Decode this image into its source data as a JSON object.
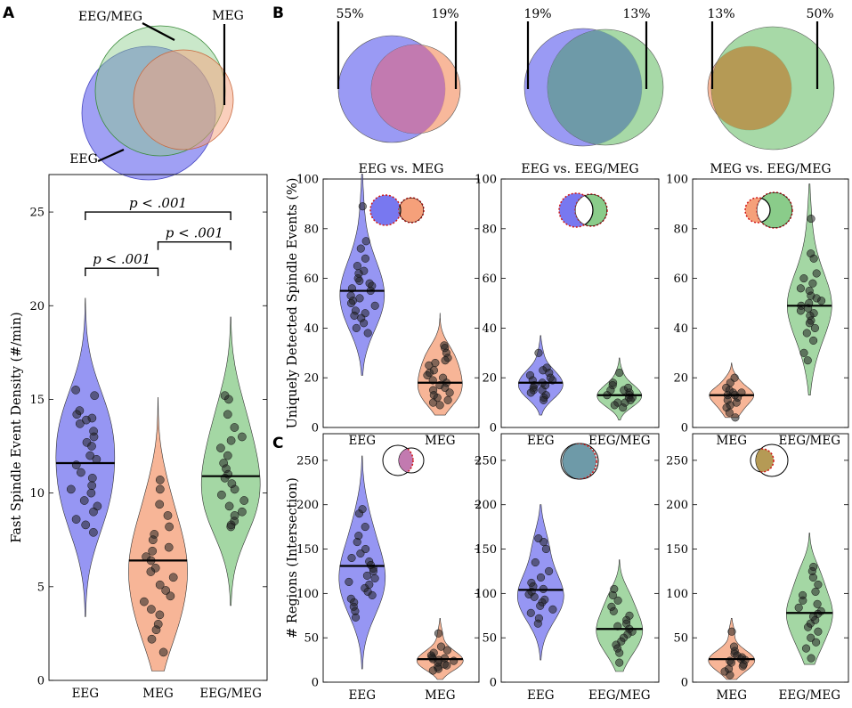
{
  "panel_letters": {
    "a": "A",
    "b": "B",
    "c": "C"
  },
  "colors": {
    "eeg": "#7878f0",
    "meg": "#f5a07a",
    "eegmeg": "#8acc8a",
    "eeg_meg_overlap": "#c27ab0",
    "eeg_eegmeg_overlap": "#6e9aa8",
    "meg_eegmeg_overlap": "#b59a55",
    "dot": "#222222",
    "dotted_outline": "#d01818"
  },
  "chart_data": [
    {
      "id": "A-venn",
      "type": "venn",
      "sets": [
        "EEG",
        "EEG/MEG",
        "MEG"
      ],
      "labels": {
        "eeg": "EEG",
        "eegmeg": "EEG/MEG",
        "meg": "MEG"
      }
    },
    {
      "id": "A-violin",
      "type": "violin",
      "ylabel": "Fast Spindle Event Density (#/min)",
      "ylim": [
        0,
        27
      ],
      "yticks": [
        0,
        5,
        10,
        15,
        20,
        25
      ],
      "categories": [
        "EEG",
        "MEG",
        "EEG/MEG"
      ],
      "series": [
        {
          "name": "EEG",
          "median": 11.6,
          "range": [
            3.4,
            20.4
          ],
          "points": [
            15.5,
            15.2,
            14.4,
            14.2,
            14.0,
            13.9,
            13.7,
            13.3,
            13.0,
            12.7,
            12.5,
            12.0,
            11.8,
            11.5,
            11.1,
            10.8,
            10.4,
            10.2,
            10.0,
            9.6,
            9.3,
            9.0,
            8.6,
            8.3,
            7.9
          ]
        },
        {
          "name": "MEG",
          "median": 6.4,
          "range": [
            0.5,
            15.1
          ],
          "points": [
            10.7,
            10.2,
            9.4,
            8.8,
            8.2,
            7.8,
            7.5,
            7.1,
            6.9,
            6.6,
            6.4,
            6.0,
            5.8,
            5.5,
            5.1,
            4.8,
            4.5,
            4.2,
            3.8,
            3.5,
            3.0,
            2.7,
            2.2,
            1.5
          ]
        },
        {
          "name": "EEG/MEG",
          "median": 10.9,
          "range": [
            4.0,
            19.4
          ],
          "points": [
            15.2,
            15.0,
            14.2,
            13.5,
            13.0,
            12.8,
            12.4,
            12.0,
            11.6,
            11.3,
            11.0,
            10.8,
            10.5,
            10.2,
            9.9,
            9.6,
            9.3,
            9.0,
            8.8,
            8.5,
            8.3,
            8.2
          ]
        }
      ],
      "significance": [
        {
          "pair": [
            "EEG",
            "MEG"
          ],
          "label": "p < .001"
        },
        {
          "pair": [
            "MEG",
            "EEG/MEG"
          ],
          "label": "p < .001"
        },
        {
          "pair": [
            "EEG",
            "EEG/MEG"
          ],
          "label": "p < .001"
        }
      ]
    },
    {
      "id": "B1-venn",
      "type": "venn",
      "sets": [
        "EEG",
        "MEG"
      ],
      "unique_labels": [
        "55%",
        "19%"
      ]
    },
    {
      "id": "B2-venn",
      "type": "venn",
      "sets": [
        "EEG",
        "EEG/MEG"
      ],
      "unique_labels": [
        "19%",
        "13%"
      ]
    },
    {
      "id": "B3-venn",
      "type": "venn",
      "sets": [
        "MEG",
        "EEG/MEG"
      ],
      "unique_labels": [
        "13%",
        "50%"
      ]
    },
    {
      "id": "B1-violin",
      "type": "violin",
      "title": "EEG vs. MEG",
      "ylabel": "Uniquely Detected Spindle Events (%)",
      "ylim": [
        0,
        100
      ],
      "yticks": [
        0,
        20,
        40,
        60,
        80,
        100
      ],
      "categories": [
        "EEG",
        "MEG"
      ],
      "series": [
        {
          "name": "EEG",
          "median": 55,
          "range": [
            21,
            102
          ],
          "points": [
            89,
            75,
            72,
            68,
            65,
            63,
            62,
            60,
            59,
            58,
            57,
            56,
            55,
            53,
            52,
            51,
            50,
            49,
            47,
            46,
            45,
            44,
            42,
            40,
            38
          ]
        },
        {
          "name": "MEG",
          "median": 18,
          "range": [
            5,
            46
          ],
          "points": [
            33,
            32,
            30,
            28,
            27,
            26,
            25,
            23,
            22,
            21,
            20,
            19,
            18,
            17,
            16,
            15,
            14,
            13,
            12,
            11,
            10,
            9
          ]
        }
      ]
    },
    {
      "id": "B2-violin",
      "type": "violin",
      "title": "EEG vs. EEG/MEG",
      "ylim": [
        0,
        100
      ],
      "yticks": [
        0,
        20,
        40,
        60,
        80,
        100
      ],
      "categories": [
        "EEG",
        "EEG/MEG"
      ],
      "series": [
        {
          "name": "EEG",
          "median": 18,
          "range": [
            5,
            37
          ],
          "points": [
            30,
            24,
            23,
            22,
            21,
            20,
            19,
            19,
            18,
            17,
            17,
            16,
            15,
            15,
            14,
            13,
            12,
            11
          ]
        },
        {
          "name": "EEG/MEG",
          "median": 13,
          "range": [
            3,
            28
          ],
          "points": [
            22,
            18,
            17,
            16,
            15,
            15,
            14,
            13,
            13,
            12,
            12,
            11,
            10,
            10,
            9,
            8
          ]
        }
      ]
    },
    {
      "id": "B3-violin",
      "type": "violin",
      "title": "MEG vs. EEG/MEG",
      "ylim": [
        0,
        100
      ],
      "yticks": [
        0,
        20,
        40,
        60,
        80,
        100
      ],
      "categories": [
        "MEG",
        "EEG/MEG"
      ],
      "series": [
        {
          "name": "MEG",
          "median": 13,
          "range": [
            4,
            26
          ],
          "points": [
            20,
            18,
            16,
            15,
            14,
            14,
            13,
            13,
            12,
            11,
            10,
            9,
            8,
            6,
            4
          ]
        },
        {
          "name": "EEG/MEG",
          "median": 49,
          "range": [
            13,
            98
          ],
          "points": [
            84,
            70,
            68,
            62,
            60,
            58,
            56,
            55,
            53,
            52,
            51,
            50,
            49,
            48,
            47,
            46,
            45,
            43,
            42,
            40,
            38,
            35,
            30,
            27
          ]
        }
      ]
    },
    {
      "id": "C1-violin",
      "type": "violin",
      "ylabel": "# Regions (Intersection)",
      "ylim": [
        0,
        280
      ],
      "yticks": [
        0,
        50,
        100,
        150,
        200,
        250
      ],
      "categories": [
        "EEG",
        "MEG"
      ],
      "series": [
        {
          "name": "EEG",
          "median": 131,
          "range": [
            15,
            255
          ],
          "points": [
            195,
            190,
            175,
            165,
            158,
            150,
            145,
            140,
            136,
            132,
            128,
            125,
            120,
            117,
            113,
            110,
            106,
            102,
            98,
            94,
            90,
            85,
            80,
            73
          ]
        },
        {
          "name": "MEG",
          "median": 26,
          "range": [
            3,
            72
          ],
          "points": [
            55,
            40,
            36,
            33,
            30,
            28,
            27,
            26,
            25,
            24,
            22,
            20,
            19,
            17,
            15,
            13
          ]
        }
      ]
    },
    {
      "id": "C2-violin",
      "type": "violin",
      "ylim": [
        0,
        280
      ],
      "yticks": [
        0,
        50,
        100,
        150,
        200,
        250
      ],
      "categories": [
        "EEG",
        "EEG/MEG"
      ],
      "series": [
        {
          "name": "EEG",
          "median": 104,
          "range": [
            25,
            200
          ],
          "points": [
            162,
            158,
            150,
            135,
            125,
            118,
            112,
            108,
            105,
            102,
            99,
            96,
            93,
            90,
            86,
            82,
            78,
            72,
            66
          ]
        },
        {
          "name": "EEG/MEG",
          "median": 60,
          "range": [
            12,
            138
          ],
          "points": [
            105,
            98,
            92,
            85,
            80,
            75,
            70,
            66,
            63,
            60,
            57,
            54,
            50,
            46,
            42,
            38,
            33,
            22
          ]
        }
      ]
    },
    {
      "id": "C3-violin",
      "type": "violin",
      "ylim": [
        0,
        280
      ],
      "yticks": [
        0,
        50,
        100,
        150,
        200,
        250
      ],
      "categories": [
        "MEG",
        "EEG/MEG"
      ],
      "series": [
        {
          "name": "MEG",
          "median": 26,
          "range": [
            3,
            72
          ],
          "points": [
            57,
            40,
            35,
            32,
            30,
            28,
            26,
            25,
            24,
            22,
            20,
            18,
            15,
            12,
            8
          ]
        },
        {
          "name": "EEG/MEG",
          "median": 78,
          "range": [
            20,
            168
          ],
          "points": [
            130,
            125,
            118,
            110,
            102,
            98,
            92,
            88,
            84,
            80,
            77,
            74,
            70,
            66,
            62,
            57,
            50,
            45,
            38,
            27
          ]
        }
      ]
    }
  ]
}
